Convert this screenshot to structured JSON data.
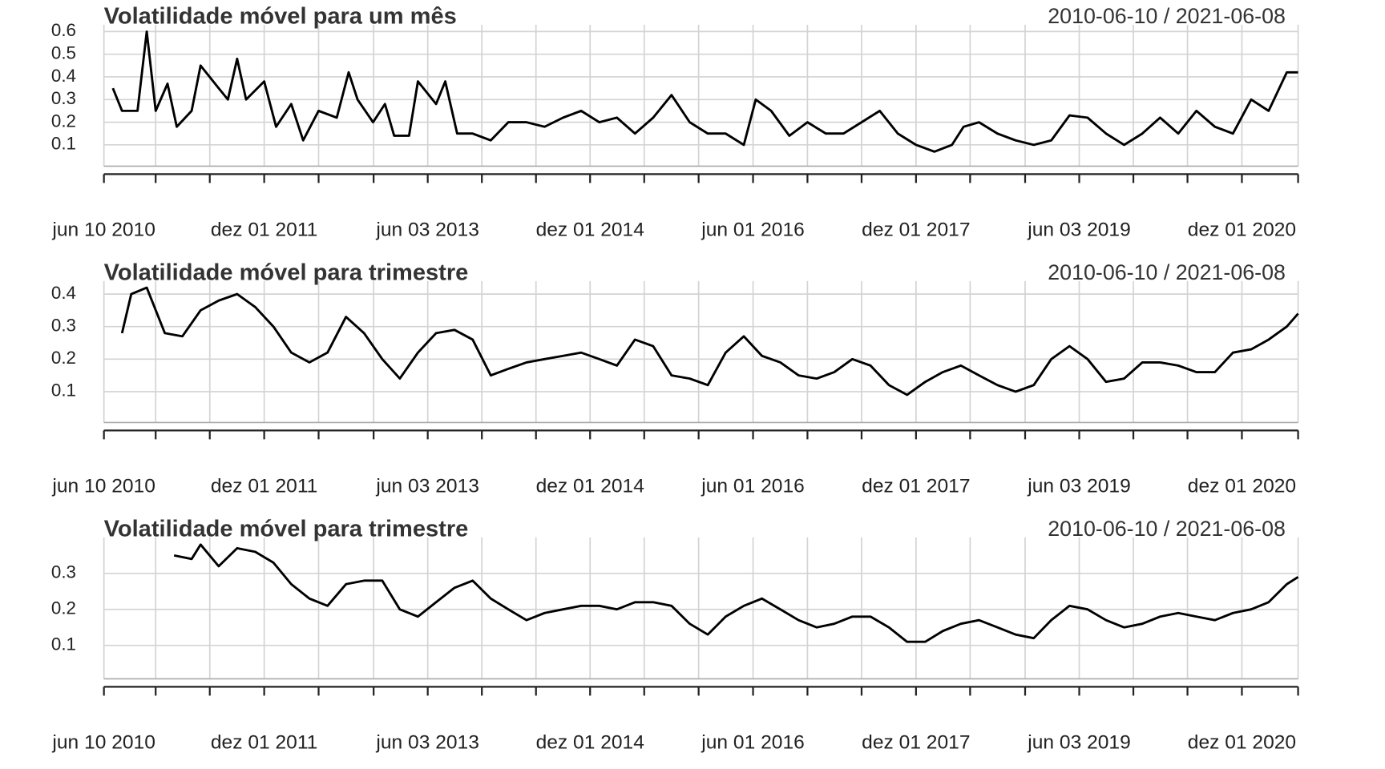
{
  "chart_data": [
    {
      "type": "line",
      "title": "Volatilidade móvel para um mês",
      "subtitle": "2010-06-10 / 2021-06-08",
      "color": "#000000",
      "grid": true,
      "xlim": [
        "2010-06-10",
        "2021-06-08"
      ],
      "ylim": [
        0.006,
        0.63
      ],
      "yticks": [
        0.1,
        0.2,
        0.3,
        0.4,
        0.5,
        0.6
      ],
      "xticks": [
        {
          "value": "2010-06-10",
          "label": "jun 10 2010"
        },
        {
          "value": "2010-12-01",
          "label": null
        },
        {
          "value": "2011-06-01",
          "label": null
        },
        {
          "value": "2011-12-01",
          "label": "dez 01 2011"
        },
        {
          "value": "2012-06-01",
          "label": null
        },
        {
          "value": "2012-12-03",
          "label": null
        },
        {
          "value": "2013-06-03",
          "label": "jun 03 2013"
        },
        {
          "value": "2013-12-02",
          "label": null
        },
        {
          "value": "2014-06-02",
          "label": null
        },
        {
          "value": "2014-12-01",
          "label": "dez 01 2014"
        },
        {
          "value": "2015-06-01",
          "label": null
        },
        {
          "value": "2015-12-01",
          "label": null
        },
        {
          "value": "2016-06-01",
          "label": "jun 01 2016"
        },
        {
          "value": "2016-12-01",
          "label": null
        },
        {
          "value": "2017-06-01",
          "label": null
        },
        {
          "value": "2017-12-01",
          "label": "dez 01 2017"
        },
        {
          "value": "2018-06-01",
          "label": null
        },
        {
          "value": "2018-12-03",
          "label": null
        },
        {
          "value": "2019-06-03",
          "label": "jun 03 2019"
        },
        {
          "value": "2019-12-02",
          "label": null
        },
        {
          "value": "2020-06-01",
          "label": null
        },
        {
          "value": "2020-12-01",
          "label": "dez 01 2020"
        },
        {
          "value": "2021-06-08",
          "label": null
        }
      ],
      "x": [
        "2010-07-10",
        "2010-08-10",
        "2010-10-01",
        "2010-11-01",
        "2010-12-01",
        "2011-01-10",
        "2011-02-10",
        "2011-04-01",
        "2011-05-01",
        "2011-07-01",
        "2011-08-01",
        "2011-09-01",
        "2011-10-01",
        "2011-12-01",
        "2012-01-10",
        "2012-03-01",
        "2012-04-10",
        "2012-06-01",
        "2012-08-01",
        "2012-09-10",
        "2012-10-10",
        "2012-12-01",
        "2013-01-10",
        "2013-02-10",
        "2013-04-01",
        "2013-05-01",
        "2013-07-01",
        "2013-08-01",
        "2013-09-10",
        "2013-11-01",
        "2014-01-01",
        "2014-03-01",
        "2014-05-01",
        "2014-07-01",
        "2014-09-01",
        "2014-11-01",
        "2015-01-01",
        "2015-03-01",
        "2015-05-01",
        "2015-07-01",
        "2015-09-01",
        "2015-11-01",
        "2016-01-01",
        "2016-03-01",
        "2016-05-01",
        "2016-06-10",
        "2016-08-01",
        "2016-10-01",
        "2016-12-01",
        "2017-02-01",
        "2017-04-01",
        "2017-06-01",
        "2017-08-01",
        "2017-10-01",
        "2017-12-01",
        "2018-02-01",
        "2018-04-01",
        "2018-05-10",
        "2018-07-01",
        "2018-09-01",
        "2018-11-01",
        "2019-01-01",
        "2019-03-01",
        "2019-05-01",
        "2019-07-01",
        "2019-09-01",
        "2019-11-01",
        "2020-01-01",
        "2020-03-01",
        "2020-05-01",
        "2020-07-01",
        "2020-09-01",
        "2020-11-01",
        "2021-01-01",
        "2021-03-01",
        "2021-05-01",
        "2021-06-08"
      ],
      "values": [
        0.35,
        0.25,
        0.25,
        0.6,
        0.25,
        0.37,
        0.18,
        0.25,
        0.45,
        0.35,
        0.3,
        0.48,
        0.3,
        0.38,
        0.18,
        0.28,
        0.12,
        0.25,
        0.22,
        0.42,
        0.3,
        0.2,
        0.28,
        0.14,
        0.14,
        0.38,
        0.28,
        0.38,
        0.15,
        0.15,
        0.12,
        0.2,
        0.2,
        0.18,
        0.22,
        0.25,
        0.2,
        0.22,
        0.15,
        0.22,
        0.32,
        0.2,
        0.15,
        0.15,
        0.1,
        0.3,
        0.25,
        0.14,
        0.2,
        0.15,
        0.15,
        0.2,
        0.25,
        0.15,
        0.1,
        0.07,
        0.1,
        0.18,
        0.2,
        0.15,
        0.12,
        0.1,
        0.12,
        0.23,
        0.22,
        0.15,
        0.1,
        0.15,
        0.22,
        0.15,
        0.25,
        0.18,
        0.15,
        0.3,
        0.25,
        0.42,
        0.42
      ]
    },
    {
      "type": "line",
      "title": "Volatilidade móvel para trimestre",
      "subtitle": "2010-06-10 / 2021-06-08",
      "color": "#000000",
      "grid": true,
      "xlim": [
        "2010-06-10",
        "2021-06-08"
      ],
      "ylim": [
        0.005,
        0.44
      ],
      "yticks": [
        0.1,
        0.2,
        0.3,
        0.4
      ],
      "xticks": [
        {
          "value": "2010-06-10",
          "label": "jun 10 2010"
        },
        {
          "value": "2010-12-01",
          "label": null
        },
        {
          "value": "2011-06-01",
          "label": null
        },
        {
          "value": "2011-12-01",
          "label": "dez 01 2011"
        },
        {
          "value": "2012-06-01",
          "label": null
        },
        {
          "value": "2012-12-03",
          "label": null
        },
        {
          "value": "2013-06-03",
          "label": "jun 03 2013"
        },
        {
          "value": "2013-12-02",
          "label": null
        },
        {
          "value": "2014-06-02",
          "label": null
        },
        {
          "value": "2014-12-01",
          "label": "dez 01 2014"
        },
        {
          "value": "2015-06-01",
          "label": null
        },
        {
          "value": "2015-12-01",
          "label": null
        },
        {
          "value": "2016-06-01",
          "label": "jun 01 2016"
        },
        {
          "value": "2016-12-01",
          "label": null
        },
        {
          "value": "2017-06-01",
          "label": null
        },
        {
          "value": "2017-12-01",
          "label": "dez 01 2017"
        },
        {
          "value": "2018-06-01",
          "label": null
        },
        {
          "value": "2018-12-03",
          "label": null
        },
        {
          "value": "2019-06-03",
          "label": "jun 03 2019"
        },
        {
          "value": "2019-12-02",
          "label": null
        },
        {
          "value": "2020-06-01",
          "label": null
        },
        {
          "value": "2020-12-01",
          "label": "dez 01 2020"
        },
        {
          "value": "2021-06-08",
          "label": null
        }
      ],
      "x": [
        "2010-08-10",
        "2010-09-10",
        "2010-11-01",
        "2011-01-01",
        "2011-03-01",
        "2011-05-01",
        "2011-07-01",
        "2011-09-01",
        "2011-11-01",
        "2012-01-01",
        "2012-03-01",
        "2012-05-01",
        "2012-07-01",
        "2012-09-01",
        "2012-11-01",
        "2013-01-01",
        "2013-03-01",
        "2013-05-01",
        "2013-07-01",
        "2013-09-01",
        "2013-11-01",
        "2014-01-01",
        "2014-03-01",
        "2014-05-01",
        "2014-07-01",
        "2014-09-01",
        "2014-11-01",
        "2015-01-01",
        "2015-03-01",
        "2015-05-01",
        "2015-07-01",
        "2015-09-01",
        "2015-11-01",
        "2016-01-01",
        "2016-03-01",
        "2016-05-01",
        "2016-07-01",
        "2016-09-01",
        "2016-11-01",
        "2017-01-01",
        "2017-03-01",
        "2017-05-01",
        "2017-07-01",
        "2017-09-01",
        "2017-11-01",
        "2018-01-01",
        "2018-03-01",
        "2018-05-01",
        "2018-07-01",
        "2018-09-01",
        "2018-11-01",
        "2019-01-01",
        "2019-03-01",
        "2019-05-01",
        "2019-07-01",
        "2019-09-01",
        "2019-11-01",
        "2020-01-01",
        "2020-03-01",
        "2020-05-01",
        "2020-07-01",
        "2020-09-01",
        "2020-11-01",
        "2021-01-01",
        "2021-03-01",
        "2021-05-01",
        "2021-06-08"
      ],
      "values": [
        0.28,
        0.4,
        0.42,
        0.28,
        0.27,
        0.35,
        0.38,
        0.4,
        0.36,
        0.3,
        0.22,
        0.19,
        0.22,
        0.33,
        0.28,
        0.2,
        0.14,
        0.22,
        0.28,
        0.29,
        0.26,
        0.15,
        0.17,
        0.19,
        0.2,
        0.21,
        0.22,
        0.2,
        0.18,
        0.26,
        0.24,
        0.15,
        0.14,
        0.12,
        0.22,
        0.27,
        0.21,
        0.19,
        0.15,
        0.14,
        0.16,
        0.2,
        0.18,
        0.12,
        0.09,
        0.13,
        0.16,
        0.18,
        0.15,
        0.12,
        0.1,
        0.12,
        0.2,
        0.24,
        0.2,
        0.13,
        0.14,
        0.19,
        0.19,
        0.18,
        0.16,
        0.16,
        0.22,
        0.23,
        0.26,
        0.3,
        0.34
      ]
    },
    {
      "type": "line",
      "title": "Volatilidade móvel para trimestre",
      "subtitle": "2010-06-10 / 2021-06-08",
      "color": "#000000",
      "grid": true,
      "xlim": [
        "2010-06-10",
        "2021-06-08"
      ],
      "ylim": [
        0.007,
        0.4
      ],
      "yticks": [
        0.1,
        0.2,
        0.3
      ],
      "xticks": [
        {
          "value": "2010-06-10",
          "label": "jun 10 2010"
        },
        {
          "value": "2010-12-01",
          "label": null
        },
        {
          "value": "2011-06-01",
          "label": null
        },
        {
          "value": "2011-12-01",
          "label": "dez 01 2011"
        },
        {
          "value": "2012-06-01",
          "label": null
        },
        {
          "value": "2012-12-03",
          "label": null
        },
        {
          "value": "2013-06-03",
          "label": "jun 03 2013"
        },
        {
          "value": "2013-12-02",
          "label": null
        },
        {
          "value": "2014-06-02",
          "label": null
        },
        {
          "value": "2014-12-01",
          "label": "dez 01 2014"
        },
        {
          "value": "2015-06-01",
          "label": null
        },
        {
          "value": "2015-12-01",
          "label": null
        },
        {
          "value": "2016-06-01",
          "label": "jun 01 2016"
        },
        {
          "value": "2016-12-01",
          "label": null
        },
        {
          "value": "2017-06-01",
          "label": null
        },
        {
          "value": "2017-12-01",
          "label": "dez 01 2017"
        },
        {
          "value": "2018-06-01",
          "label": null
        },
        {
          "value": "2018-12-03",
          "label": null
        },
        {
          "value": "2019-06-03",
          "label": "jun 03 2019"
        },
        {
          "value": "2019-12-02",
          "label": null
        },
        {
          "value": "2020-06-01",
          "label": null
        },
        {
          "value": "2020-12-01",
          "label": "dez 01 2020"
        },
        {
          "value": "2021-06-08",
          "label": null
        }
      ],
      "x": [
        "2011-02-01",
        "2011-04-01",
        "2011-05-01",
        "2011-07-01",
        "2011-09-01",
        "2011-11-01",
        "2012-01-01",
        "2012-03-01",
        "2012-05-01",
        "2012-07-01",
        "2012-09-01",
        "2012-11-01",
        "2013-01-01",
        "2013-03-01",
        "2013-05-01",
        "2013-07-01",
        "2013-09-01",
        "2013-11-01",
        "2014-01-01",
        "2014-03-01",
        "2014-05-01",
        "2014-07-01",
        "2014-09-01",
        "2014-11-01",
        "2015-01-01",
        "2015-03-01",
        "2015-05-01",
        "2015-07-01",
        "2015-09-01",
        "2015-11-01",
        "2016-01-01",
        "2016-03-01",
        "2016-05-01",
        "2016-07-01",
        "2016-09-01",
        "2016-11-01",
        "2017-01-01",
        "2017-03-01",
        "2017-05-01",
        "2017-07-01",
        "2017-09-01",
        "2017-11-01",
        "2018-01-01",
        "2018-03-01",
        "2018-05-01",
        "2018-07-01",
        "2018-09-01",
        "2018-11-01",
        "2019-01-01",
        "2019-03-01",
        "2019-05-01",
        "2019-07-01",
        "2019-09-01",
        "2019-11-01",
        "2020-01-01",
        "2020-03-01",
        "2020-05-01",
        "2020-07-01",
        "2020-09-01",
        "2020-11-01",
        "2021-01-01",
        "2021-03-01",
        "2021-05-01",
        "2021-06-08"
      ],
      "values": [
        0.35,
        0.34,
        0.38,
        0.32,
        0.37,
        0.36,
        0.33,
        0.27,
        0.23,
        0.21,
        0.27,
        0.28,
        0.28,
        0.2,
        0.18,
        0.22,
        0.26,
        0.28,
        0.23,
        0.2,
        0.17,
        0.19,
        0.2,
        0.21,
        0.21,
        0.2,
        0.22,
        0.22,
        0.21,
        0.16,
        0.13,
        0.18,
        0.21,
        0.23,
        0.2,
        0.17,
        0.15,
        0.16,
        0.18,
        0.18,
        0.15,
        0.11,
        0.11,
        0.14,
        0.16,
        0.17,
        0.15,
        0.13,
        0.12,
        0.17,
        0.21,
        0.2,
        0.17,
        0.15,
        0.16,
        0.18,
        0.19,
        0.18,
        0.17,
        0.19,
        0.2,
        0.22,
        0.27,
        0.29
      ]
    }
  ]
}
